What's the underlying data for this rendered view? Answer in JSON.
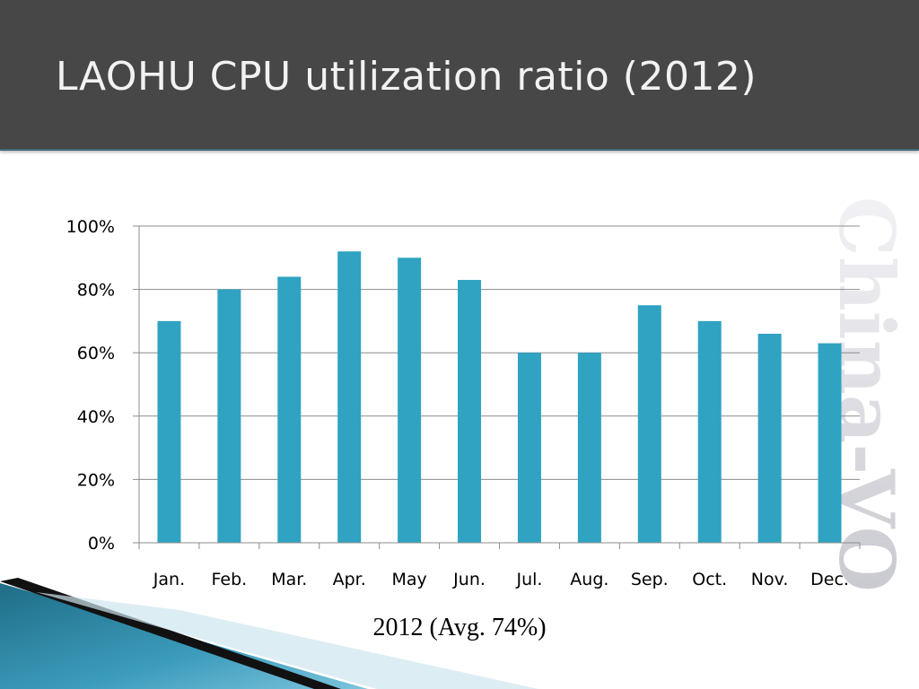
{
  "slide": {
    "title": "LAOHU CPU utilization ratio (2012)",
    "watermark_text": "China-VO"
  },
  "chart_data": {
    "type": "bar",
    "title": "",
    "xlabel": "2012 (Avg. 74%)",
    "ylabel": "",
    "ylim": [
      0,
      100
    ],
    "yticks": [
      "0%",
      "20%",
      "40%",
      "60%",
      "80%",
      "100%"
    ],
    "ytick_values": [
      0,
      20,
      40,
      60,
      80,
      100
    ],
    "categories": [
      "Jan.",
      "Feb.",
      "Mar.",
      "Apr.",
      "May",
      "Jun.",
      "Jul.",
      "Aug.",
      "Sep.",
      "Oct.",
      "Nov.",
      "Dec."
    ],
    "values": [
      70,
      80,
      84,
      92,
      90,
      83,
      60,
      60,
      75,
      70,
      66,
      63
    ],
    "grid": true,
    "legend": "none",
    "bar_color": "#2fa3c1"
  }
}
